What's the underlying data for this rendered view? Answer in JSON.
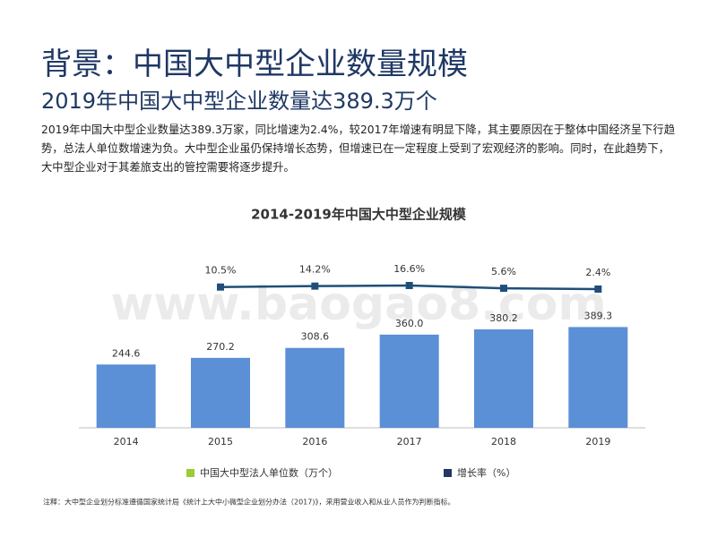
{
  "header": {
    "title": "背景：中国大中型企业数量规模",
    "subtitle": "2019年中国大中型企业数量达389.3万个",
    "paragraph": "2019年中国大中型企业数量达389.3万家，同比增速为2.4%，较2017年增速有明显下降，其主要原因在于整体中国经济呈下行趋势，总法人单位数增速为负。大中型企业虽仍保持增长态势，但增速已在一定程度上受到了宏观经济的影响。同时，在此趋势下，大中型企业对于其差旅支出的管控需要将逐步提升。"
  },
  "chart_data": {
    "type": "bar",
    "title": "2014-2019年中国大中型企业规模",
    "categories": [
      "2014",
      "2015",
      "2016",
      "2017",
      "2018",
      "2019"
    ],
    "ylim": [
      0,
      650
    ],
    "y2lim": [
      -550,
      120
    ],
    "series": [
      {
        "name": "中国大中型法人单位数（万个）",
        "color": "#5b8fd6",
        "legend_color": "#9acd32",
        "values": [
          244.6,
          270.2,
          308.6,
          360.0,
          380.2,
          389.3
        ],
        "value_labels": [
          "244.6",
          "270.2",
          "308.6",
          "360.0",
          "380.2",
          "389.3"
        ]
      },
      {
        "name": "增长率（%）",
        "type": "line",
        "axis": "y2",
        "color": "#1f4e79",
        "legend_color": "#1f3864",
        "values": [
          null,
          10.5,
          14.2,
          16.6,
          5.6,
          2.4
        ],
        "value_labels": [
          null,
          "10.5%",
          "14.2%",
          "16.6%",
          "5.6%",
          "2.4%"
        ]
      }
    ],
    "watermark": "www.baogao8.com"
  },
  "note": "注释：大中型企业划分标准遵循国家统计局《统计上大中小微型企业划分办法（2017)》，采用营业收入和从业人员作为判断指标。"
}
